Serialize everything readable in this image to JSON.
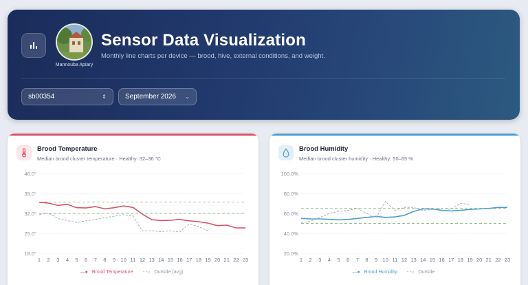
{
  "header": {
    "title": "Sensor Data Visualization",
    "subtitle": "Monthly line charts per device — brood, hive, external conditions, and weight.",
    "avatar_caption": "Mannouba Apiary",
    "icons": {
      "app": "bar-chart-icon"
    }
  },
  "filters": {
    "device": {
      "value": "sb00354",
      "icon": "up-down-chevron-icon"
    },
    "month": {
      "value": "September 2026",
      "icon": "chevron-down-icon"
    }
  },
  "colors": {
    "temp_accent": "#d9546a",
    "humidity_accent": "#4a9fd4",
    "outside": "#a8adb6",
    "band": "#8fbf8a"
  },
  "cards": {
    "temperature": {
      "title": "Brood Temperature",
      "subtitle": "Median brood cluster temperature · Healthy: 32–36 °C",
      "icon": "thermometer-icon",
      "legend_main": "Brood Temperature",
      "legend_outside": "Outside (avg)"
    },
    "humidity": {
      "title": "Brood Humidity",
      "subtitle": "Median brood cluster humidity · Healthy: 50–65 %",
      "icon": "droplet-icon",
      "legend_main": "Brood Humidity",
      "legend_outside": "Outside"
    }
  },
  "chart_data": [
    {
      "type": "line",
      "title": "Brood Temperature",
      "x": [
        1,
        2,
        3,
        4,
        5,
        6,
        7,
        8,
        9,
        10,
        11,
        12,
        13,
        14,
        15,
        16,
        17,
        18,
        19,
        20,
        21,
        22,
        23
      ],
      "y_ticks": [
        "46.0°",
        "39.0°",
        "32.0°",
        "25.0°",
        "18.0°"
      ],
      "ylim": [
        18,
        46
      ],
      "healthy_band": [
        32,
        36
      ],
      "series": [
        {
          "name": "Brood Temperature",
          "values": [
            35.9,
            35.6,
            34.8,
            35.2,
            34.0,
            33.9,
            34.4,
            33.6,
            34.0,
            34.6,
            34.1,
            31.8,
            29.8,
            29.5,
            29.6,
            29.9,
            29.4,
            29.1,
            28.6,
            27.7,
            27.9,
            26.9,
            26.9
          ]
        },
        {
          "name": "Outside (avg)",
          "values": [
            31.6,
            32.1,
            30.2,
            29.5,
            28.8,
            29.4,
            29.9,
            30.5,
            31.0,
            31.6,
            31.0,
            25.9,
            25.9,
            25.6,
            25.9,
            25.5,
            28.3,
            27.4,
            25.9,
            null,
            null,
            null,
            null
          ]
        }
      ]
    },
    {
      "type": "line",
      "title": "Brood Humidity",
      "x": [
        1,
        2,
        3,
        4,
        5,
        6,
        7,
        8,
        9,
        10,
        11,
        12,
        13,
        14,
        15,
        16,
        17,
        18,
        19,
        20,
        21,
        22,
        23
      ],
      "y_ticks": [
        "100.0%",
        "80.0%",
        "60.0%",
        "40.0%",
        "20.0%"
      ],
      "ylim": [
        20,
        100
      ],
      "healthy_band": [
        50,
        65
      ],
      "series": [
        {
          "name": "Brood Humidity",
          "values": [
            55,
            54.5,
            54.5,
            54,
            53.5,
            54,
            55,
            56,
            57,
            56,
            56.5,
            58,
            62,
            64.5,
            64.5,
            63,
            62.5,
            63,
            64,
            64.5,
            65,
            66,
            66
          ]
        },
        {
          "name": "Outside",
          "values": [
            51,
            52,
            56,
            60,
            62,
            63,
            65,
            60,
            56,
            72,
            63,
            66,
            66,
            63,
            64,
            65,
            64,
            70,
            69,
            null,
            null,
            null,
            null
          ]
        }
      ]
    }
  ]
}
